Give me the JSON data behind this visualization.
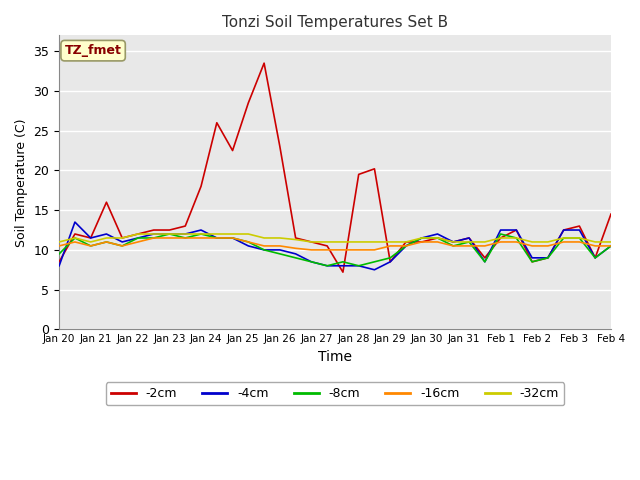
{
  "title": "Tonzi Soil Temperatures Set B",
  "xlabel": "Time",
  "ylabel": "Soil Temperature (C)",
  "ylim": [
    0,
    37
  ],
  "yticks": [
    0,
    5,
    10,
    15,
    20,
    25,
    30,
    35
  ],
  "legend_label": "TZ_fmet",
  "legend_box_facecolor": "#ffffcc",
  "legend_box_edgecolor": "#999966",
  "series_labels": [
    "-2cm",
    "-4cm",
    "-8cm",
    "-16cm",
    "-32cm"
  ],
  "series_colors": [
    "#cc0000",
    "#0000cc",
    "#00bb00",
    "#ff8800",
    "#cccc00"
  ],
  "x_tick_labels": [
    "Jan 20",
    "Jan 21",
    "Jan 22",
    "Jan 23",
    "Jan 24",
    "Jan 25",
    "Jan 26",
    "Jan 27",
    "Jan 28",
    "Jan 29",
    "Jan 30",
    "Jan 31",
    "Feb 1",
    "Feb 2",
    "Feb 3",
    "Feb 4"
  ],
  "plot_bg_color": "#e8e8e8",
  "fig_bg_color": "#ffffff",
  "grid_color": "#ffffff",
  "series": {
    "-2cm": [
      8.5,
      12.0,
      11.5,
      16.0,
      11.5,
      12.0,
      12.5,
      12.5,
      13.0,
      18.0,
      26.0,
      22.5,
      28.5,
      33.5,
      23.0,
      11.5,
      11.0,
      10.5,
      7.2,
      19.5,
      20.2,
      8.5,
      11.0,
      11.0,
      11.5,
      11.0,
      11.5,
      9.0,
      11.5,
      12.5,
      8.5,
      9.0,
      12.5,
      13.0,
      9.0,
      14.5
    ],
    "-4cm": [
      8.0,
      13.5,
      11.5,
      12.0,
      11.0,
      11.5,
      12.0,
      12.0,
      12.0,
      12.5,
      11.5,
      11.5,
      10.5,
      10.0,
      10.0,
      9.5,
      8.5,
      8.0,
      8.0,
      8.0,
      7.5,
      8.5,
      10.5,
      11.5,
      12.0,
      11.0,
      11.5,
      8.5,
      12.5,
      12.5,
      9.0,
      9.0,
      12.5,
      12.5,
      9.0,
      10.5
    ],
    "-8cm": [
      9.5,
      11.5,
      10.5,
      11.0,
      10.5,
      11.5,
      11.5,
      12.0,
      11.5,
      12.0,
      11.5,
      11.5,
      11.0,
      10.0,
      9.5,
      9.0,
      8.5,
      8.0,
      8.5,
      8.0,
      8.5,
      9.0,
      10.5,
      11.5,
      11.5,
      10.5,
      11.0,
      8.5,
      12.0,
      11.5,
      8.5,
      9.0,
      11.5,
      11.5,
      9.0,
      10.5
    ],
    "-16cm": [
      10.5,
      11.0,
      10.5,
      11.0,
      10.5,
      11.0,
      11.5,
      11.5,
      11.5,
      11.5,
      11.5,
      11.5,
      11.0,
      10.5,
      10.5,
      10.2,
      10.0,
      10.0,
      10.0,
      10.0,
      10.0,
      10.5,
      10.5,
      11.0,
      11.0,
      10.5,
      10.5,
      10.5,
      11.0,
      11.0,
      10.5,
      10.5,
      11.0,
      11.0,
      10.5,
      10.5
    ],
    "-32cm": [
      11.0,
      11.5,
      11.0,
      11.5,
      11.5,
      12.0,
      12.0,
      12.0,
      12.0,
      12.0,
      12.0,
      12.0,
      12.0,
      11.5,
      11.5,
      11.3,
      11.0,
      11.0,
      11.0,
      11.0,
      11.0,
      11.0,
      11.0,
      11.5,
      11.5,
      11.0,
      11.0,
      11.0,
      11.5,
      11.5,
      11.0,
      11.0,
      11.5,
      11.5,
      11.0,
      11.0
    ]
  },
  "n_ticks": 16
}
